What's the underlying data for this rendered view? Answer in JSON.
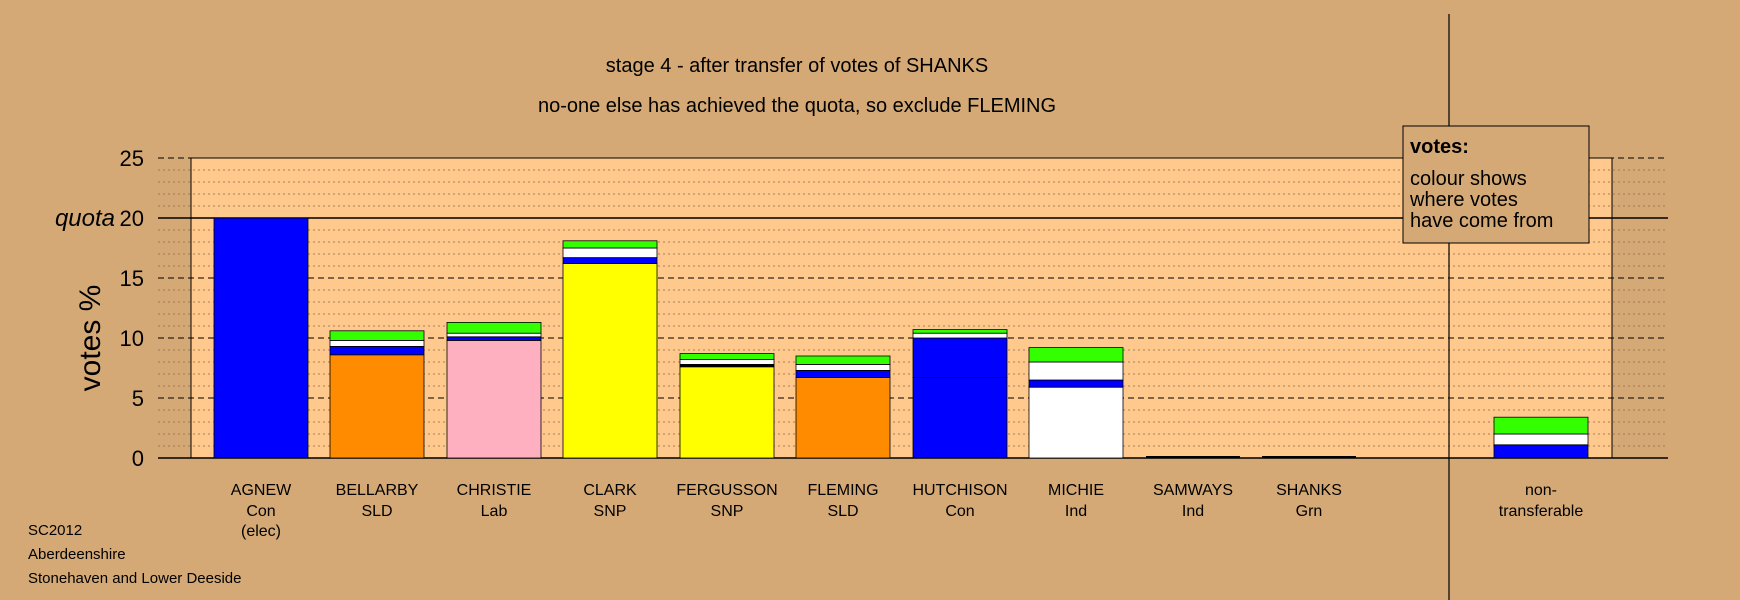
{
  "chart_data": {
    "type": "bar",
    "stacked": true,
    "title": "stage 4 - after transfer of votes of SHANKS",
    "subtitle": "no-one else has achieved the quota, so exclude FLEMING",
    "ylabel": "votes %",
    "ylim": [
      0,
      25
    ],
    "yticks": [
      0,
      5,
      10,
      15,
      20,
      25
    ],
    "quota": {
      "label": "quota",
      "value": 20
    },
    "legend": {
      "title": "votes:",
      "lines": [
        "colour shows",
        "where votes",
        "have come from"
      ],
      "placement": "top-right"
    },
    "candidates": [
      {
        "name": "AGNEW",
        "party": "Con",
        "note": "(elec)",
        "segments": [
          {
            "color": "#0000ff",
            "value": 20.0
          }
        ]
      },
      {
        "name": "BELLARBY",
        "party": "SLD",
        "segments": [
          {
            "color": "#ff8c00",
            "value": 8.6
          },
          {
            "color": "#0000ff",
            "value": 0.7
          },
          {
            "color": "#ffffff",
            "value": 0.5
          },
          {
            "color": "#33ff00",
            "value": 0.8
          }
        ]
      },
      {
        "name": "CHRISTIE",
        "party": "Lab",
        "segments": [
          {
            "color": "#ffb0c0",
            "value": 9.8
          },
          {
            "color": "#0000ff",
            "value": 0.3
          },
          {
            "color": "#ffffff",
            "value": 0.3
          },
          {
            "color": "#33ff00",
            "value": 0.9
          }
        ]
      },
      {
        "name": "CLARK",
        "party": "SNP",
        "segments": [
          {
            "color": "#ffff00",
            "value": 16.2
          },
          {
            "color": "#0000ff",
            "value": 0.5
          },
          {
            "color": "#ffffff",
            "value": 0.8
          },
          {
            "color": "#33ff00",
            "value": 0.6
          }
        ]
      },
      {
        "name": "FERGUSSON",
        "party": "SNP",
        "segments": [
          {
            "color": "#ffff00",
            "value": 7.6
          },
          {
            "color": "#000000",
            "value": 0.2
          },
          {
            "color": "#ffffff",
            "value": 0.4
          },
          {
            "color": "#33ff00",
            "value": 0.5
          }
        ]
      },
      {
        "name": "FLEMING",
        "party": "SLD",
        "segments": [
          {
            "color": "#ff8c00",
            "value": 6.7
          },
          {
            "color": "#0000ff",
            "value": 0.6
          },
          {
            "color": "#ffffff",
            "value": 0.5
          },
          {
            "color": "#33ff00",
            "value": 0.7
          }
        ]
      },
      {
        "name": "HUTCHISON",
        "party": "Con",
        "segments": [
          {
            "color": "#0000ff",
            "value": 6.7
          },
          {
            "color": "#0000ff",
            "value": 3.3
          },
          {
            "color": "#ffffff",
            "value": 0.4
          },
          {
            "color": "#33ff00",
            "value": 0.3
          }
        ]
      },
      {
        "name": "MICHIE",
        "party": "Ind",
        "segments": [
          {
            "color": "#ffffff",
            "value": 5.9
          },
          {
            "color": "#0000ff",
            "value": 0.6
          },
          {
            "color": "#ffffff",
            "value": 1.5
          },
          {
            "color": "#33ff00",
            "value": 1.2
          }
        ]
      },
      {
        "name": "SAMWAYS",
        "party": "Ind",
        "segments": []
      },
      {
        "name": "SHANKS",
        "party": "Grn",
        "segments": []
      }
    ],
    "nontransferable": {
      "label_lines": [
        "non-",
        "transferable"
      ],
      "segments": [
        {
          "color": "#0000ff",
          "value": 1.1
        },
        {
          "color": "#ffffff",
          "value": 0.9
        },
        {
          "color": "#33ff00",
          "value": 1.4
        }
      ]
    }
  },
  "footer": {
    "line1": "SC2012",
    "line2": "Aberdeenshire",
    "line3": "Stonehaven and Lower Deeside"
  }
}
